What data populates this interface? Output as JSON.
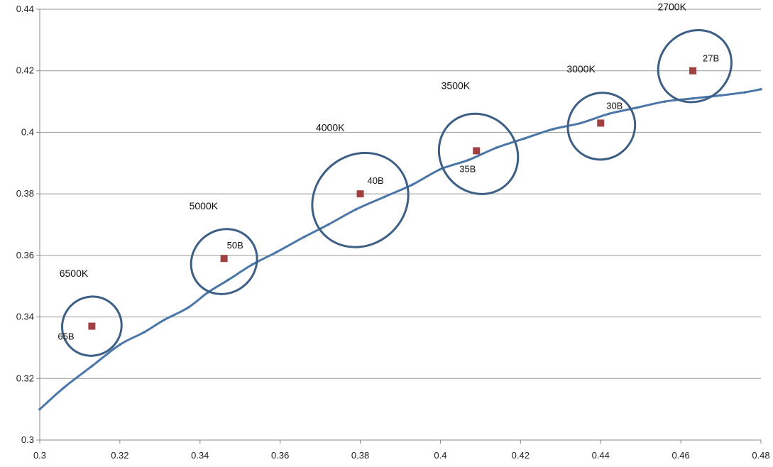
{
  "chart_data": {
    "type": "scatter",
    "title": "",
    "xlabel": "",
    "ylabel": "",
    "xlim": [
      0.3,
      0.48
    ],
    "ylim": [
      0.3,
      0.44
    ],
    "x_ticks": [
      "0.3",
      "0.32",
      "0.34",
      "0.36",
      "0.38",
      "0.4",
      "0.42",
      "0.44",
      "0.46",
      "0.48"
    ],
    "y_ticks": [
      "0.3",
      "0.32",
      "0.34",
      "0.36",
      "0.38",
      "0.4",
      "0.42",
      "0.44"
    ],
    "grid": "horizontal",
    "colors": {
      "locus": "#4a76a8",
      "points": "#a04040",
      "ellipses": "#3d5f86",
      "grid": "#999999"
    },
    "locus": {
      "x": [
        0.3,
        0.306,
        0.313,
        0.32,
        0.326,
        0.331,
        0.337,
        0.342,
        0.347,
        0.353,
        0.359,
        0.366,
        0.372,
        0.379,
        0.386,
        0.393,
        0.4,
        0.407,
        0.414,
        0.421,
        0.428,
        0.435,
        0.442,
        0.449,
        0.456,
        0.463,
        0.47,
        0.476,
        0.48
      ],
      "y": [
        0.31,
        0.317,
        0.324,
        0.331,
        0.335,
        0.339,
        0.343,
        0.348,
        0.352,
        0.357,
        0.361,
        0.366,
        0.37,
        0.375,
        0.379,
        0.383,
        0.388,
        0.391,
        0.395,
        0.398,
        0.401,
        0.403,
        0.406,
        0.408,
        0.41,
        0.411,
        0.412,
        0.413,
        0.414
      ]
    },
    "points": [
      {
        "label": "65B",
        "x": 0.313,
        "y": 0.337
      },
      {
        "label": "50B",
        "x": 0.346,
        "y": 0.359
      },
      {
        "label": "40B",
        "x": 0.38,
        "y": 0.38
      },
      {
        "label": "35B",
        "x": 0.409,
        "y": 0.394
      },
      {
        "label": "30B",
        "x": 0.44,
        "y": 0.403
      },
      {
        "label": "27B",
        "x": 0.463,
        "y": 0.42
      }
    ],
    "ellipses": [
      {
        "cct": "6500K",
        "cx": 0.313,
        "cy": 0.337,
        "rx": 0.0075,
        "ry": 0.0095
      },
      {
        "cct": "5000K",
        "cx": 0.346,
        "cy": 0.358,
        "rx": 0.0085,
        "ry": 0.0102
      },
      {
        "cct": "4000K",
        "cx": 0.38,
        "cy": 0.378,
        "rx": 0.0125,
        "ry": 0.0146
      },
      {
        "cct": "3500K",
        "cx": 0.4095,
        "cy": 0.393,
        "rx": 0.0095,
        "ry": 0.0135
      },
      {
        "cct": "3000K",
        "cx": 0.4402,
        "cy": 0.402,
        "rx": 0.0085,
        "ry": 0.0107
      },
      {
        "cct": "2700K",
        "cx": 0.4635,
        "cy": 0.4215,
        "rx": 0.0095,
        "ry": 0.0112
      }
    ]
  }
}
